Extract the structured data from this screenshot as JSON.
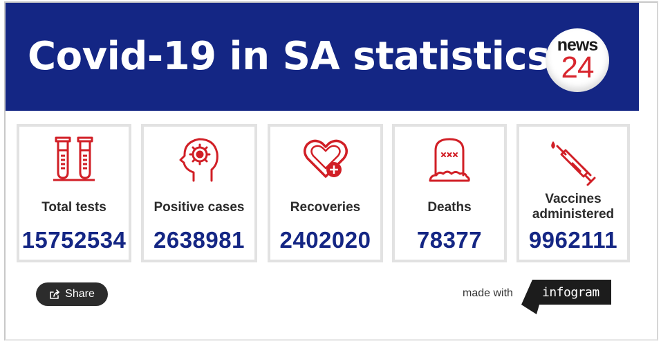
{
  "header": {
    "title": "Covid-19 in SA statistics",
    "logo": {
      "line1": "news",
      "line2": "24"
    }
  },
  "colors": {
    "header_bg": "#142684",
    "value_text": "#142684",
    "icon_red": "#d11f26"
  },
  "stats": [
    {
      "label": "Total tests",
      "value": "15752534",
      "icon": "test-tubes-icon"
    },
    {
      "label": "Positive cases",
      "value": "2638981",
      "icon": "virus-head-icon"
    },
    {
      "label": "Recoveries",
      "value": "2402020",
      "icon": "heart-plus-icon"
    },
    {
      "label": "Deaths",
      "value": "78377",
      "icon": "tombstone-icon"
    },
    {
      "label": "Vaccines administered",
      "value": "9962111",
      "icon": "syringe-icon"
    }
  ],
  "footer": {
    "share_label": "Share",
    "made_with": "made with",
    "brand": "infogram"
  }
}
